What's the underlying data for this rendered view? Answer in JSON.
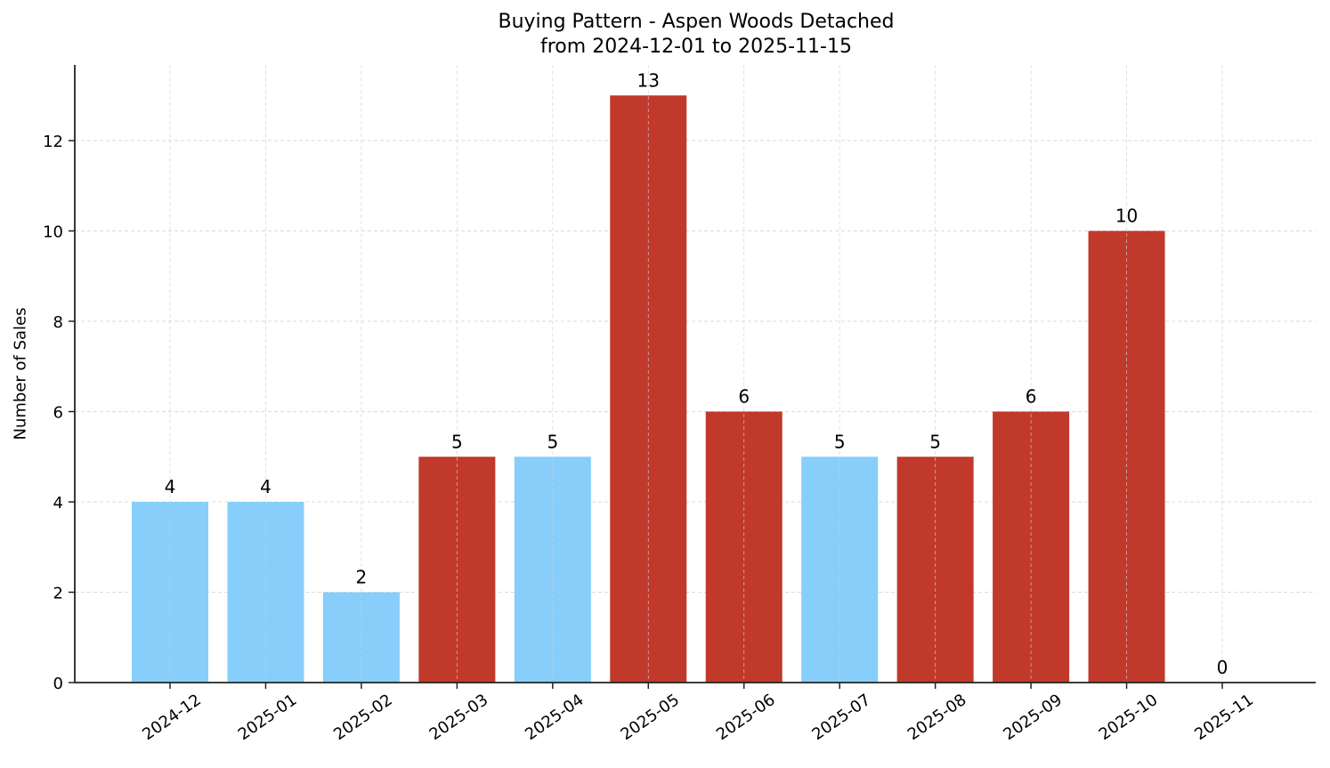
{
  "chart_data": {
    "type": "bar",
    "title": "Buying Pattern - Aspen Woods Detached",
    "subtitle": "from 2024-12-01 to 2025-11-15",
    "xlabel": "",
    "ylabel": "Number of Sales",
    "ylim": [
      0,
      13.65
    ],
    "yticks": [
      0,
      2,
      4,
      6,
      8,
      10,
      12
    ],
    "grid": true,
    "legend": null,
    "categories": [
      "2024-12",
      "2025-01",
      "2025-02",
      "2025-03",
      "2025-04",
      "2025-05",
      "2025-06",
      "2025-07",
      "2025-08",
      "2025-09",
      "2025-10",
      "2025-11"
    ],
    "values": [
      4,
      4,
      2,
      5,
      5,
      13,
      6,
      5,
      5,
      6,
      10,
      0
    ],
    "bar_colors": [
      "#87CEFA",
      "#87CEFA",
      "#87CEFA",
      "#C0392B",
      "#87CEFA",
      "#C0392B",
      "#C0392B",
      "#87CEFA",
      "#C0392B",
      "#C0392B",
      "#C0392B",
      "#87CEFA"
    ],
    "data_labels": [
      "4",
      "4",
      "2",
      "5",
      "5",
      "13",
      "6",
      "5",
      "5",
      "6",
      "10",
      "0"
    ]
  },
  "colors": {
    "light": "#87CEFA",
    "dark": "#C0392B",
    "grid": "#d0d0d0",
    "axis": "#222222"
  }
}
